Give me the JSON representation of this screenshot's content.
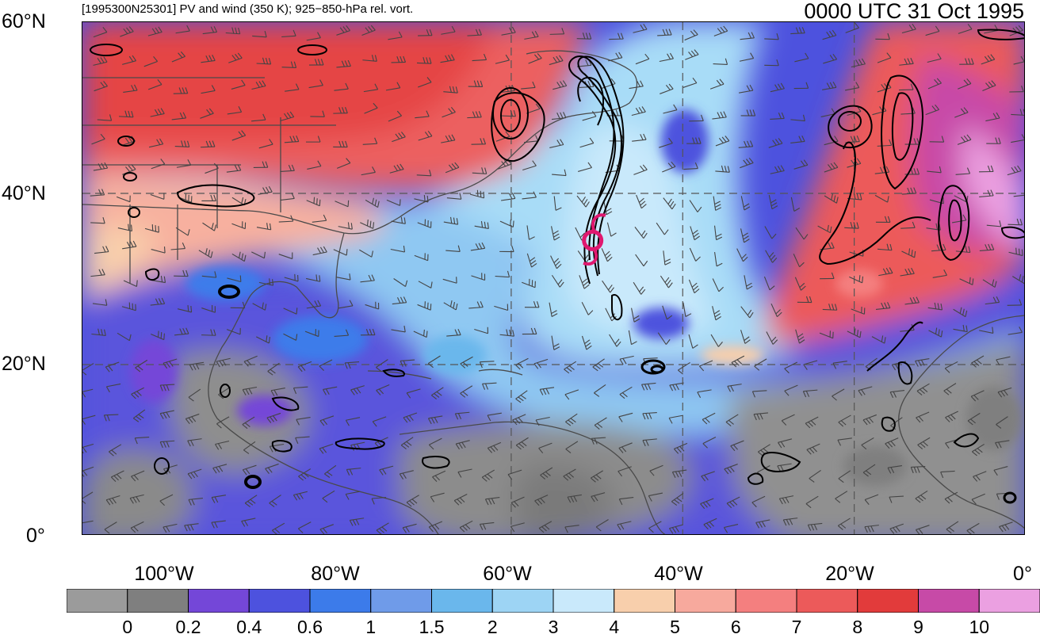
{
  "header": {
    "title": "[1995300N25301] PV and wind (350 K); 925−850-hPa rel. vort.",
    "timestamp": "0000 UTC 31 Oct 1995"
  },
  "axes": {
    "lat_labels": [
      "60°N",
      "40°N",
      "20°N",
      "0°"
    ],
    "lon_labels": [
      "100°W",
      "80°W",
      "60°W",
      "40°W",
      "20°W",
      "0°"
    ]
  },
  "colorbar": {
    "colors": [
      "#9b9b9b",
      "#7f7f7f",
      "#7447d8",
      "#4d52de",
      "#3c7bea",
      "#6f9be9",
      "#6ab7ec",
      "#9dd4f4",
      "#c9e9fb",
      "#f8cfac",
      "#f7a99d",
      "#f47f7f",
      "#ec5a5a",
      "#e23b3b",
      "#c74aa7",
      "#eba0e1"
    ],
    "labels": [
      "0",
      "0.2",
      "0.4",
      "0.6",
      "1",
      "1.5",
      "2",
      "3",
      "4",
      "5",
      "6",
      "7",
      "8",
      "9",
      "10"
    ]
  },
  "map": {
    "lat_range": [
      0,
      60
    ],
    "lon_range": [
      -110,
      0
    ],
    "grid_lats": [
      20,
      40
    ],
    "grid_lons": [
      -60,
      -40,
      -20
    ],
    "storm_center_lon_lat": [
      -50.5,
      34.5
    ],
    "storm_color": "#e0186f",
    "contour_color": "#000000",
    "barb_color": "#444444"
  }
}
